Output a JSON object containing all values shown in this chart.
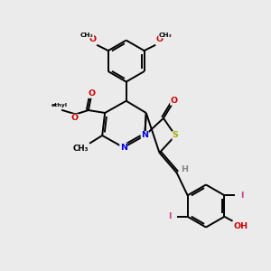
{
  "bg_color": "#ebebeb",
  "bond_color": "#000000",
  "bond_width": 1.4,
  "figsize": [
    3.0,
    3.0
  ],
  "dpi": 100,
  "xlim": [
    0,
    10
  ],
  "ylim": [
    0,
    10
  ]
}
